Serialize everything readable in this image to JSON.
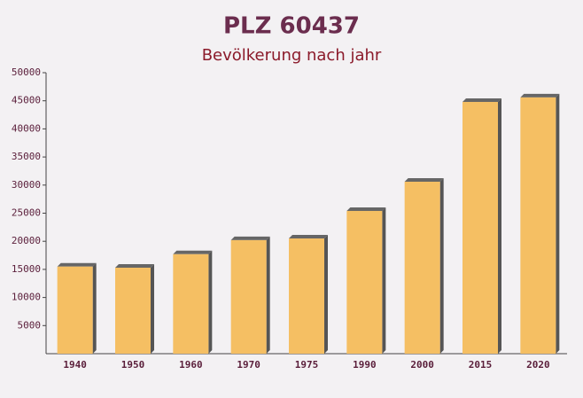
{
  "chart_data": {
    "type": "bar",
    "title": "PLZ 60437",
    "subtitle": "Bevölkerung nach jahr",
    "categories": [
      "1940",
      "1950",
      "1960",
      "1970",
      "1975",
      "1990",
      "2000",
      "2015",
      "2020"
    ],
    "values": [
      15500,
      15300,
      17700,
      20200,
      20500,
      25400,
      30600,
      44800,
      45600
    ],
    "color": "#f5bf63",
    "ylim": [
      0,
      50000
    ],
    "yticks": [
      5000,
      10000,
      15000,
      20000,
      25000,
      30000,
      35000,
      40000,
      45000,
      50000
    ],
    "grid": false
  }
}
